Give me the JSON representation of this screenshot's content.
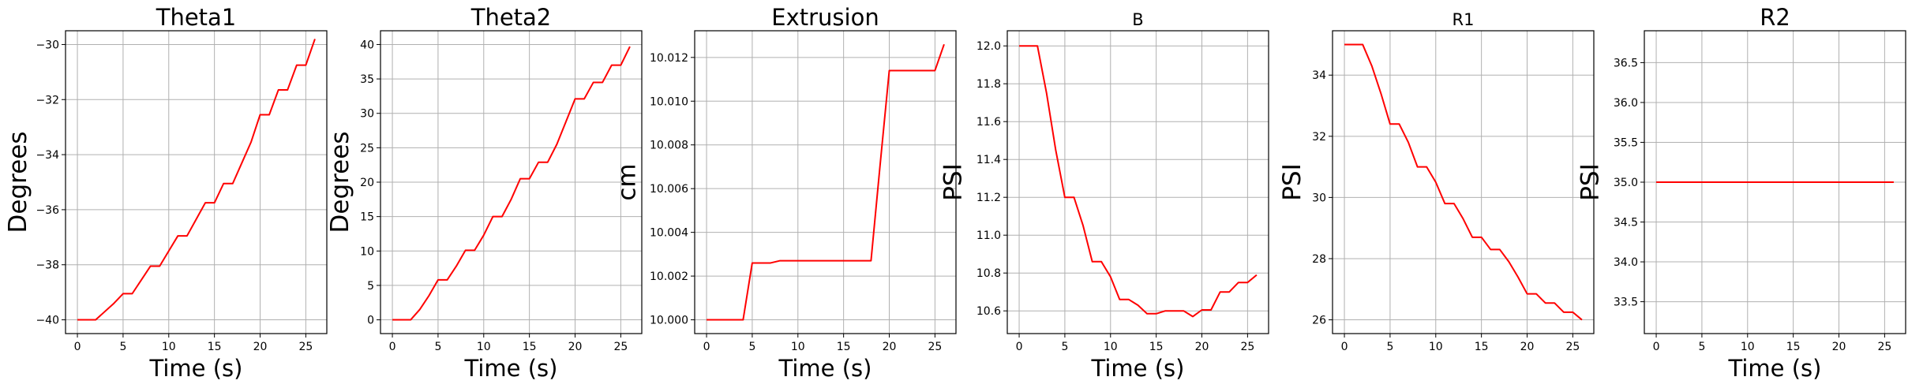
{
  "chart_data": [
    {
      "type": "line",
      "title": "Theta1",
      "xlabel": "Time (s)",
      "ylabel": "Degrees",
      "xlim": [
        -1.3,
        27.3
      ],
      "ylim": [
        -40.5,
        -29.5
      ],
      "xticks": [
        0,
        5,
        10,
        15,
        20,
        25
      ],
      "xtick_labels": [
        "0",
        "5",
        "10",
        "15",
        "20",
        "25"
      ],
      "yticks": [
        -40,
        -38,
        -36,
        -34,
        -32,
        -30
      ],
      "ytick_labels": [
        "−40",
        "−38",
        "−36",
        "−34",
        "−32",
        "−30"
      ],
      "grid": true,
      "color": "#ff0000",
      "x": [
        0,
        1,
        2,
        3,
        4,
        5,
        6,
        7,
        8,
        9,
        10,
        11,
        12,
        13,
        14,
        15,
        16,
        17,
        18,
        19,
        20,
        21,
        22,
        23,
        24,
        25,
        26
      ],
      "y": [
        -40,
        -40,
        -40,
        -39.7,
        -39.4,
        -39.05,
        -39.05,
        -38.55,
        -38.05,
        -38.05,
        -37.5,
        -36.95,
        -36.95,
        -36.35,
        -35.75,
        -35.75,
        -35.05,
        -35.05,
        -34.3,
        -33.55,
        -32.55,
        -32.55,
        -31.65,
        -31.65,
        -30.75,
        -30.75,
        -29.8
      ]
    },
    {
      "type": "line",
      "title": "Theta2",
      "xlabel": "Time (s)",
      "ylabel": "Degrees",
      "xlim": [
        -1.3,
        27.3
      ],
      "ylim": [
        -2,
        42
      ],
      "xticks": [
        0,
        5,
        10,
        15,
        20,
        25
      ],
      "xtick_labels": [
        "0",
        "5",
        "10",
        "15",
        "20",
        "25"
      ],
      "yticks": [
        0,
        5,
        10,
        15,
        20,
        25,
        30,
        35,
        40
      ],
      "ytick_labels": [
        "0",
        "5",
        "10",
        "15",
        "20",
        "25",
        "30",
        "35",
        "40"
      ],
      "grid": true,
      "color": "#ff0000",
      "x": [
        0,
        1,
        2,
        3,
        4,
        5,
        6,
        7,
        8,
        9,
        10,
        11,
        12,
        13,
        14,
        15,
        16,
        17,
        18,
        19,
        20,
        21,
        22,
        23,
        24,
        25,
        26
      ],
      "y": [
        0,
        0,
        0,
        1.5,
        3.5,
        5.8,
        5.8,
        7.8,
        10.1,
        10.1,
        12.3,
        15,
        15,
        17.5,
        20.5,
        20.5,
        22.9,
        22.9,
        25.5,
        28.8,
        32.1,
        32.1,
        34.5,
        34.5,
        37,
        37,
        39.7
      ]
    },
    {
      "type": "line",
      "title": "Extrusion",
      "xlabel": "Time (s)",
      "ylabel": "cm",
      "xlim": [
        -1.3,
        27.3
      ],
      "ylim": [
        9.99937,
        10.01322
      ],
      "xticks": [
        0,
        5,
        10,
        15,
        20,
        25
      ],
      "xtick_labels": [
        "0",
        "5",
        "10",
        "15",
        "20",
        "25"
      ],
      "yticks": [
        10.0,
        10.002,
        10.004,
        10.006,
        10.008,
        10.01,
        10.012
      ],
      "ytick_labels": [
        "10.000",
        "10.002",
        "10.004",
        "10.006",
        "10.008",
        "10.010",
        "10.012"
      ],
      "grid": true,
      "color": "#ff0000",
      "x": [
        0,
        1,
        2,
        3,
        4,
        5,
        6,
        7,
        8,
        9,
        10,
        11,
        12,
        13,
        14,
        15,
        16,
        17,
        18,
        19,
        20,
        21,
        22,
        23,
        24,
        25,
        26
      ],
      "y": [
        10.0,
        10.0,
        10.0,
        10.0,
        10.0,
        10.0026,
        10.0026,
        10.0026,
        10.0027,
        10.0027,
        10.0027,
        10.0027,
        10.0027,
        10.0027,
        10.0027,
        10.0027,
        10.0027,
        10.0027,
        10.0027,
        10.0071,
        10.0114,
        10.0114,
        10.0114,
        10.0114,
        10.0114,
        10.0114,
        10.0126
      ]
    },
    {
      "type": "line",
      "title": "B",
      "xlabel": "Time (s)",
      "ylabel": "PSI",
      "xlim": [
        -1.3,
        27.3
      ],
      "ylim": [
        10.48,
        12.08
      ],
      "xticks": [
        0,
        5,
        10,
        15,
        20,
        25
      ],
      "xtick_labels": [
        "0",
        "5",
        "10",
        "15",
        "20",
        "25"
      ],
      "yticks": [
        10.6,
        10.8,
        11.0,
        11.2,
        11.4,
        11.6,
        11.8,
        12.0
      ],
      "ytick_labels": [
        "10.6",
        "10.8",
        "11.0",
        "11.2",
        "11.4",
        "11.6",
        "11.8",
        "12.0"
      ],
      "grid": true,
      "color": "#ff0000",
      "x": [
        0,
        1,
        2,
        3,
        4,
        5,
        6,
        7,
        8,
        9,
        10,
        11,
        12,
        13,
        14,
        15,
        16,
        17,
        18,
        19,
        20,
        21,
        22,
        23,
        24,
        25,
        26
      ],
      "y": [
        12.0,
        12.0,
        12.0,
        11.75,
        11.45,
        11.2,
        11.2,
        11.05,
        10.86,
        10.86,
        10.78,
        10.66,
        10.66,
        10.63,
        10.585,
        10.585,
        10.6,
        10.6,
        10.6,
        10.57,
        10.605,
        10.605,
        10.7,
        10.7,
        10.75,
        10.75,
        10.79
      ]
    },
    {
      "type": "line",
      "title": "R1",
      "xlabel": "",
      "ylabel": "PSI",
      "xlim": [
        -1.3,
        27.3
      ],
      "ylim": [
        25.55,
        35.45
      ],
      "xticks": [
        0,
        5,
        10,
        15,
        20,
        25
      ],
      "xtick_labels": [
        "0",
        "5",
        "10",
        "15",
        "20",
        "25"
      ],
      "yticks": [
        26,
        28,
        30,
        32,
        34
      ],
      "ytick_labels": [
        "26",
        "28",
        "30",
        "32",
        "34"
      ],
      "grid": true,
      "color": "#ff0000",
      "x": [
        0,
        1,
        2,
        3,
        4,
        5,
        6,
        7,
        8,
        9,
        10,
        11,
        12,
        13,
        14,
        15,
        16,
        17,
        18,
        19,
        20,
        21,
        22,
        23,
        24,
        25,
        26
      ],
      "y": [
        35.0,
        35.0,
        35.0,
        34.3,
        33.4,
        32.4,
        32.4,
        31.8,
        31.0,
        31.0,
        30.5,
        29.8,
        29.8,
        29.3,
        28.7,
        28.7,
        28.3,
        28.3,
        27.9,
        27.4,
        26.85,
        26.85,
        26.55,
        26.55,
        26.25,
        26.25,
        26.0
      ]
    },
    {
      "type": "line",
      "title": "R2",
      "xlabel": "Time (s)",
      "ylabel": "PSI",
      "xlim": [
        -1.3,
        27.3
      ],
      "ylim": [
        33.1,
        36.9
      ],
      "xticks": [
        0,
        5,
        10,
        15,
        20,
        25
      ],
      "xtick_labels": [
        "0",
        "5",
        "10",
        "15",
        "20",
        "25"
      ],
      "yticks": [
        33.5,
        34.0,
        34.5,
        35.0,
        35.5,
        36.0,
        36.5
      ],
      "ytick_labels": [
        "33.5",
        "34.0",
        "34.5",
        "35.0",
        "35.5",
        "36.0",
        "36.5"
      ],
      "grid": true,
      "color": "#ff0000",
      "x": [
        0,
        26
      ],
      "y": [
        35.0,
        35.0
      ]
    }
  ]
}
